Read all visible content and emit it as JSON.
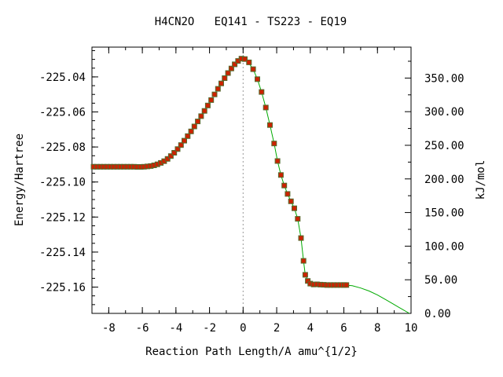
{
  "chart_data": {
    "type": "line",
    "title": "H4CN2O   EQ141 - TS223 - EQ19",
    "xlabel": "Reaction Path Length/A amu^{1/2}",
    "ylabel": "Energy/Hartree",
    "y2label": "kJ/mol",
    "xlim": [
      -9,
      10
    ],
    "ylim": [
      -225.175,
      -225.023
    ],
    "y2lim": [
      0.0,
      396.0
    ],
    "x_ticks": [
      "-8",
      "-6",
      "-4",
      "-2",
      "0",
      "2",
      "4",
      "6",
      "8",
      "10"
    ],
    "y_ticks": [
      "-225.04",
      "-225.06",
      "-225.08",
      "-225.10",
      "-225.12",
      "-225.14",
      "-225.16"
    ],
    "y2_ticks": [
      "0.00",
      "50.00",
      "100.00",
      "150.00",
      "200.00",
      "250.00",
      "300.00",
      "350.00"
    ],
    "ts_marker_x": 0,
    "series": [
      {
        "style": "markers",
        "color": "#cc2200",
        "edge_color": "#556b2f",
        "points": [
          [
            -8.9,
            -225.0913
          ],
          [
            -8.7,
            -225.0913
          ],
          [
            -8.5,
            -225.0913
          ],
          [
            -8.3,
            -225.0913
          ],
          [
            -8.1,
            -225.0913
          ],
          [
            -7.9,
            -225.0913
          ],
          [
            -7.7,
            -225.0913
          ],
          [
            -7.5,
            -225.0913
          ],
          [
            -7.3,
            -225.0913
          ],
          [
            -7.1,
            -225.0913
          ],
          [
            -6.9,
            -225.0913
          ],
          [
            -6.7,
            -225.0913
          ],
          [
            -6.5,
            -225.0913
          ],
          [
            -6.3,
            -225.0914
          ],
          [
            -6.1,
            -225.0914
          ],
          [
            -5.9,
            -225.0913
          ],
          [
            -5.7,
            -225.0911
          ],
          [
            -5.5,
            -225.0909
          ],
          [
            -5.3,
            -225.0905
          ],
          [
            -5.1,
            -225.0899
          ],
          [
            -4.9,
            -225.0891
          ],
          [
            -4.7,
            -225.0881
          ],
          [
            -4.5,
            -225.0868
          ],
          [
            -4.3,
            -225.0852
          ],
          [
            -4.1,
            -225.0833
          ],
          [
            -3.9,
            -225.0812
          ],
          [
            -3.7,
            -225.0789
          ],
          [
            -3.5,
            -225.0764
          ],
          [
            -3.3,
            -225.0738
          ],
          [
            -3.1,
            -225.0711
          ],
          [
            -2.9,
            -225.0683
          ],
          [
            -2.7,
            -225.0654
          ],
          [
            -2.5,
            -225.0624
          ],
          [
            -2.3,
            -225.0594
          ],
          [
            -2.1,
            -225.0563
          ],
          [
            -1.9,
            -225.0532
          ],
          [
            -1.7,
            -225.05
          ],
          [
            -1.5,
            -225.0468
          ],
          [
            -1.3,
            -225.0437
          ],
          [
            -1.1,
            -225.0407
          ],
          [
            -0.9,
            -225.0378
          ],
          [
            -0.7,
            -225.0352
          ],
          [
            -0.5,
            -225.0328
          ],
          [
            -0.3,
            -225.0309
          ],
          [
            -0.1,
            -225.0296
          ],
          [
            0.1,
            -225.0298
          ],
          [
            0.35,
            -225.0317
          ],
          [
            0.6,
            -225.0356
          ],
          [
            0.85,
            -225.0413
          ],
          [
            1.1,
            -225.0486
          ],
          [
            1.35,
            -225.0575
          ],
          [
            1.6,
            -225.0675
          ],
          [
            1.85,
            -225.078
          ],
          [
            2.05,
            -225.088
          ],
          [
            2.25,
            -225.096
          ],
          [
            2.45,
            -225.102
          ],
          [
            2.65,
            -225.1068
          ],
          [
            2.85,
            -225.111
          ],
          [
            3.05,
            -225.115
          ],
          [
            3.25,
            -225.121
          ],
          [
            3.45,
            -225.132
          ],
          [
            3.6,
            -225.145
          ],
          [
            3.7,
            -225.153
          ],
          [
            3.85,
            -225.1565
          ],
          [
            4.0,
            -225.158
          ],
          [
            4.2,
            -225.1585
          ],
          [
            4.4,
            -225.1584
          ],
          [
            4.6,
            -225.1586
          ],
          [
            4.8,
            -225.1587
          ],
          [
            5.0,
            -225.1588
          ],
          [
            5.2,
            -225.1588
          ],
          [
            5.4,
            -225.1588
          ],
          [
            5.6,
            -225.1588
          ],
          [
            5.8,
            -225.1588
          ],
          [
            6.0,
            -225.1588
          ],
          [
            6.15,
            -225.1588
          ]
        ]
      },
      {
        "style": "line",
        "color": "#00aa00",
        "points": [
          [
            0.3,
            -225.0315
          ],
          [
            0.6,
            -225.0356
          ],
          [
            0.85,
            -225.0413
          ],
          [
            1.1,
            -225.0486
          ],
          [
            1.35,
            -225.0575
          ],
          [
            1.6,
            -225.0675
          ],
          [
            1.85,
            -225.078
          ],
          [
            2.05,
            -225.088
          ],
          [
            2.25,
            -225.096
          ],
          [
            2.45,
            -225.102
          ],
          [
            2.65,
            -225.1068
          ],
          [
            2.85,
            -225.111
          ],
          [
            3.05,
            -225.115
          ],
          [
            3.25,
            -225.121
          ],
          [
            3.45,
            -225.132
          ],
          [
            3.6,
            -225.145
          ],
          [
            3.7,
            -225.153
          ],
          [
            3.85,
            -225.1565
          ],
          [
            4.0,
            -225.158
          ],
          [
            4.4,
            -225.1584
          ],
          [
            5.0,
            -225.1588
          ],
          [
            6.0,
            -225.1588
          ],
          [
            6.5,
            -225.1592
          ],
          [
            7.0,
            -225.1605
          ],
          [
            7.5,
            -225.1622
          ],
          [
            8.0,
            -225.1645
          ],
          [
            8.5,
            -225.1672
          ],
          [
            9.0,
            -225.17
          ],
          [
            9.5,
            -225.1728
          ],
          [
            9.9,
            -225.175
          ]
        ]
      }
    ],
    "grid": false,
    "legend": "none"
  }
}
